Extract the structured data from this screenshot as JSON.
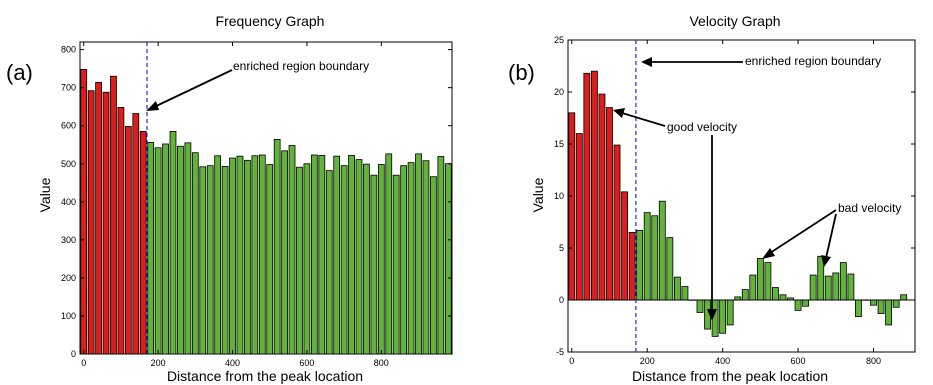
{
  "chart_data": [
    {
      "type": "bar",
      "panel_label": "(a)",
      "title": "Frequency Graph",
      "xlabel": "Distance from the peak location",
      "ylabel": "Value",
      "xlim": [
        -10,
        990
      ],
      "ylim": [
        0,
        820
      ],
      "xticks": [
        0,
        200,
        400,
        600,
        800
      ],
      "yticks": [
        0,
        100,
        200,
        300,
        400,
        500,
        600,
        700,
        800
      ],
      "bar_width": 16,
      "boundary_x": 170,
      "bar_colors": {
        "enriched": "#dd1c1c",
        "other": "#62b33a"
      },
      "annotation": {
        "text": "enriched region boundary"
      },
      "x": [
        0,
        20,
        40,
        60,
        80,
        100,
        120,
        140,
        160,
        180,
        200,
        220,
        240,
        260,
        280,
        300,
        320,
        340,
        360,
        380,
        400,
        420,
        440,
        460,
        480,
        500,
        520,
        540,
        560,
        580,
        600,
        620,
        640,
        660,
        680,
        700,
        720,
        740,
        760,
        780,
        800,
        820,
        840,
        860,
        880,
        900,
        920,
        940,
        960,
        980
      ],
      "values": [
        748,
        692,
        714,
        688,
        730,
        648,
        598,
        632,
        585,
        556,
        542,
        552,
        585,
        546,
        555,
        529,
        492,
        495,
        521,
        493,
        515,
        520,
        509,
        521,
        523,
        498,
        564,
        534,
        548,
        491,
        500,
        523,
        522,
        482,
        520,
        495,
        522,
        511,
        499,
        470,
        498,
        526,
        470,
        495,
        503,
        526,
        508,
        466,
        519,
        500
      ]
    },
    {
      "type": "bar",
      "panel_label": "(b)",
      "title": "Velocity Graph",
      "xlabel": "Distance from the peak location",
      "ylabel": "Value",
      "xlim": [
        -10,
        910
      ],
      "ylim": [
        -5,
        25
      ],
      "xticks": [
        0,
        200,
        400,
        600,
        800
      ],
      "yticks": [
        -5,
        0,
        5,
        10,
        15,
        20,
        25
      ],
      "bar_width": 16,
      "boundary_x": 170,
      "bar_colors": {
        "enriched": "#dd1c1c",
        "other": "#62b33a"
      },
      "annotations": [
        {
          "text": "enriched region boundary"
        },
        {
          "text": "good velocity"
        },
        {
          "text": "bad velocity"
        }
      ],
      "x": [
        0,
        20,
        40,
        60,
        80,
        100,
        120,
        140,
        160,
        180,
        200,
        220,
        240,
        260,
        280,
        300,
        320,
        340,
        360,
        380,
        400,
        420,
        440,
        460,
        480,
        500,
        520,
        540,
        560,
        580,
        600,
        620,
        640,
        660,
        680,
        700,
        720,
        740,
        760,
        780,
        800,
        820,
        840,
        860,
        880
      ],
      "values": [
        18,
        16,
        21.8,
        22,
        19.8,
        18.5,
        14.9,
        10.4,
        6.5,
        6.7,
        8.4,
        8.1,
        9.5,
        6,
        2.2,
        1.3,
        0,
        -1.2,
        -2.8,
        -3.5,
        -3.2,
        -2.4,
        0.3,
        1,
        2.4,
        4,
        3.6,
        1.2,
        0.5,
        0.2,
        -1,
        -0.6,
        2.4,
        4.2,
        2.3,
        2.6,
        3.6,
        2.5,
        -1.6,
        0,
        -0.5,
        -1.3,
        -2.4,
        -0.7,
        0.5
      ]
    }
  ]
}
